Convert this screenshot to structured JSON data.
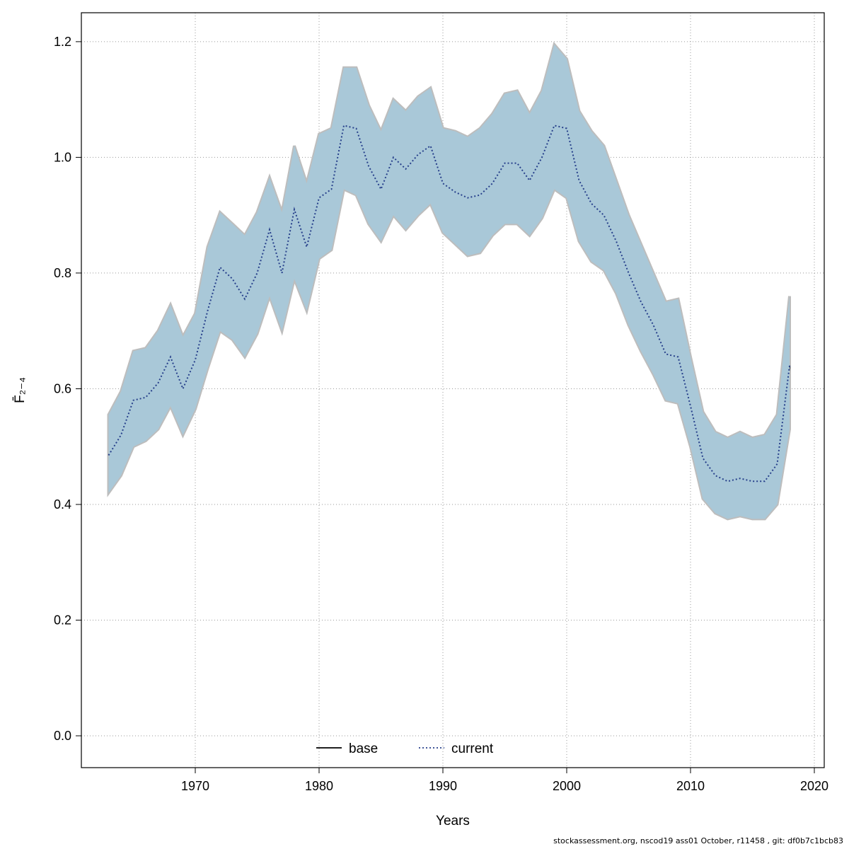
{
  "page": {
    "footer": "stockassessment.org, nscod19 ass01 October, r11458 , git: df0b7c1bcb83"
  },
  "chart_data": {
    "type": "line",
    "subtype": "line-with-confidence-ribbon",
    "title": "",
    "xlabel": "Years",
    "ylabel": "F̄₂₋₄",
    "xlim": [
      1960.8,
      2020.8
    ],
    "ylim": [
      -0.055,
      1.25
    ],
    "x_ticks": [
      1970,
      1980,
      1990,
      2000,
      2010,
      2020
    ],
    "y_ticks": [
      0.0,
      0.2,
      0.4,
      0.6,
      0.8,
      1.0,
      1.2
    ],
    "grid": true,
    "grid_style": "dotted",
    "legend_position": "bottom-center-inside",
    "x": [
      1963,
      1964,
      1965,
      1966,
      1967,
      1968,
      1969,
      1970,
      1971,
      1972,
      1973,
      1974,
      1975,
      1976,
      1977,
      1978,
      1979,
      1980,
      1981,
      1982,
      1983,
      1984,
      1985,
      1986,
      1987,
      1988,
      1989,
      1990,
      1991,
      1992,
      1993,
      1994,
      1995,
      1996,
      1997,
      1998,
      1999,
      2000,
      2001,
      2002,
      2003,
      2004,
      2005,
      2006,
      2007,
      2008,
      2009,
      2010,
      2011,
      2012,
      2013,
      2014,
      2015,
      2016,
      2017,
      2018
    ],
    "series": [
      {
        "name": "base",
        "line": "solid",
        "color": "#000000",
        "band_color": "#bdbdbd",
        "mean": [
          0.485,
          0.52,
          0.58,
          0.585,
          0.61,
          0.655,
          0.6,
          0.65,
          0.735,
          0.81,
          0.79,
          0.755,
          0.8,
          0.875,
          0.8,
          0.91,
          0.845,
          0.93,
          0.945,
          1.055,
          1.05,
          0.985,
          0.945,
          1.0,
          0.98,
          1.005,
          1.02,
          0.955,
          0.94,
          0.93,
          0.935,
          0.955,
          0.99,
          0.99,
          0.96,
          1.0,
          1.055,
          1.05,
          0.96,
          0.92,
          0.9,
          0.855,
          0.8,
          0.75,
          0.71,
          0.66,
          0.655,
          0.57,
          0.48,
          0.45,
          0.44,
          0.445,
          0.44,
          0.44,
          0.47,
          0.64
        ],
        "lo": [
          0.42,
          0.45,
          0.5,
          0.51,
          0.53,
          0.57,
          0.52,
          0.565,
          0.635,
          0.7,
          0.685,
          0.655,
          0.695,
          0.76,
          0.7,
          0.79,
          0.735,
          0.825,
          0.84,
          0.945,
          0.935,
          0.885,
          0.855,
          0.9,
          0.875,
          0.9,
          0.92,
          0.87,
          0.85,
          0.83,
          0.835,
          0.865,
          0.885,
          0.885,
          0.865,
          0.895,
          0.945,
          0.93,
          0.855,
          0.82,
          0.805,
          0.765,
          0.71,
          0.665,
          0.625,
          0.58,
          0.575,
          0.5,
          0.41,
          0.385,
          0.375,
          0.38,
          0.375,
          0.375,
          0.4,
          0.53
        ],
        "hi": [
          0.555,
          0.595,
          0.665,
          0.67,
          0.7,
          0.745,
          0.69,
          0.73,
          0.845,
          0.905,
          0.885,
          0.865,
          0.905,
          0.965,
          0.905,
          1.02,
          0.955,
          1.04,
          1.05,
          1.155,
          1.155,
          1.09,
          1.045,
          1.1,
          1.08,
          1.105,
          1.12,
          1.05,
          1.045,
          1.035,
          1.05,
          1.075,
          1.11,
          1.115,
          1.075,
          1.115,
          1.195,
          1.17,
          1.08,
          1.045,
          1.02,
          0.96,
          0.9,
          0.85,
          0.8,
          0.75,
          0.755,
          0.655,
          0.56,
          0.525,
          0.515,
          0.525,
          0.515,
          0.52,
          0.555,
          0.76
        ]
      },
      {
        "name": "current",
        "line": "dotted",
        "color": "#27408b",
        "band_color": "#a9c8d8",
        "mean": [
          0.485,
          0.52,
          0.58,
          0.585,
          0.61,
          0.655,
          0.6,
          0.65,
          0.735,
          0.81,
          0.79,
          0.755,
          0.8,
          0.875,
          0.8,
          0.91,
          0.845,
          0.93,
          0.945,
          1.055,
          1.05,
          0.985,
          0.945,
          1.0,
          0.98,
          1.005,
          1.02,
          0.955,
          0.94,
          0.93,
          0.935,
          0.955,
          0.99,
          0.99,
          0.96,
          1.0,
          1.055,
          1.05,
          0.96,
          0.92,
          0.9,
          0.855,
          0.8,
          0.75,
          0.71,
          0.66,
          0.655,
          0.57,
          0.48,
          0.45,
          0.44,
          0.445,
          0.44,
          0.44,
          0.47,
          0.64
        ],
        "lo": [
          0.42,
          0.45,
          0.5,
          0.51,
          0.53,
          0.57,
          0.52,
          0.565,
          0.635,
          0.7,
          0.685,
          0.655,
          0.695,
          0.76,
          0.7,
          0.79,
          0.735,
          0.825,
          0.84,
          0.945,
          0.935,
          0.885,
          0.855,
          0.9,
          0.875,
          0.9,
          0.92,
          0.87,
          0.85,
          0.83,
          0.835,
          0.865,
          0.885,
          0.885,
          0.865,
          0.895,
          0.945,
          0.93,
          0.855,
          0.82,
          0.805,
          0.765,
          0.71,
          0.665,
          0.625,
          0.58,
          0.575,
          0.5,
          0.41,
          0.385,
          0.375,
          0.38,
          0.375,
          0.375,
          0.4,
          0.53
        ],
        "hi": [
          0.555,
          0.595,
          0.665,
          0.67,
          0.7,
          0.745,
          0.69,
          0.73,
          0.845,
          0.905,
          0.885,
          0.865,
          0.905,
          0.965,
          0.905,
          1.02,
          0.955,
          1.04,
          1.05,
          1.155,
          1.155,
          1.09,
          1.045,
          1.1,
          1.08,
          1.105,
          1.12,
          1.05,
          1.045,
          1.035,
          1.05,
          1.075,
          1.11,
          1.115,
          1.075,
          1.115,
          1.195,
          1.17,
          1.08,
          1.045,
          1.02,
          0.96,
          0.9,
          0.85,
          0.8,
          0.75,
          0.755,
          0.655,
          0.56,
          0.525,
          0.515,
          0.525,
          0.515,
          0.52,
          0.555,
          0.76
        ]
      }
    ],
    "legend": [
      {
        "label": "base",
        "swatch": "solid-black-line"
      },
      {
        "label": "current",
        "swatch": "dotted-blue-line"
      }
    ]
  }
}
